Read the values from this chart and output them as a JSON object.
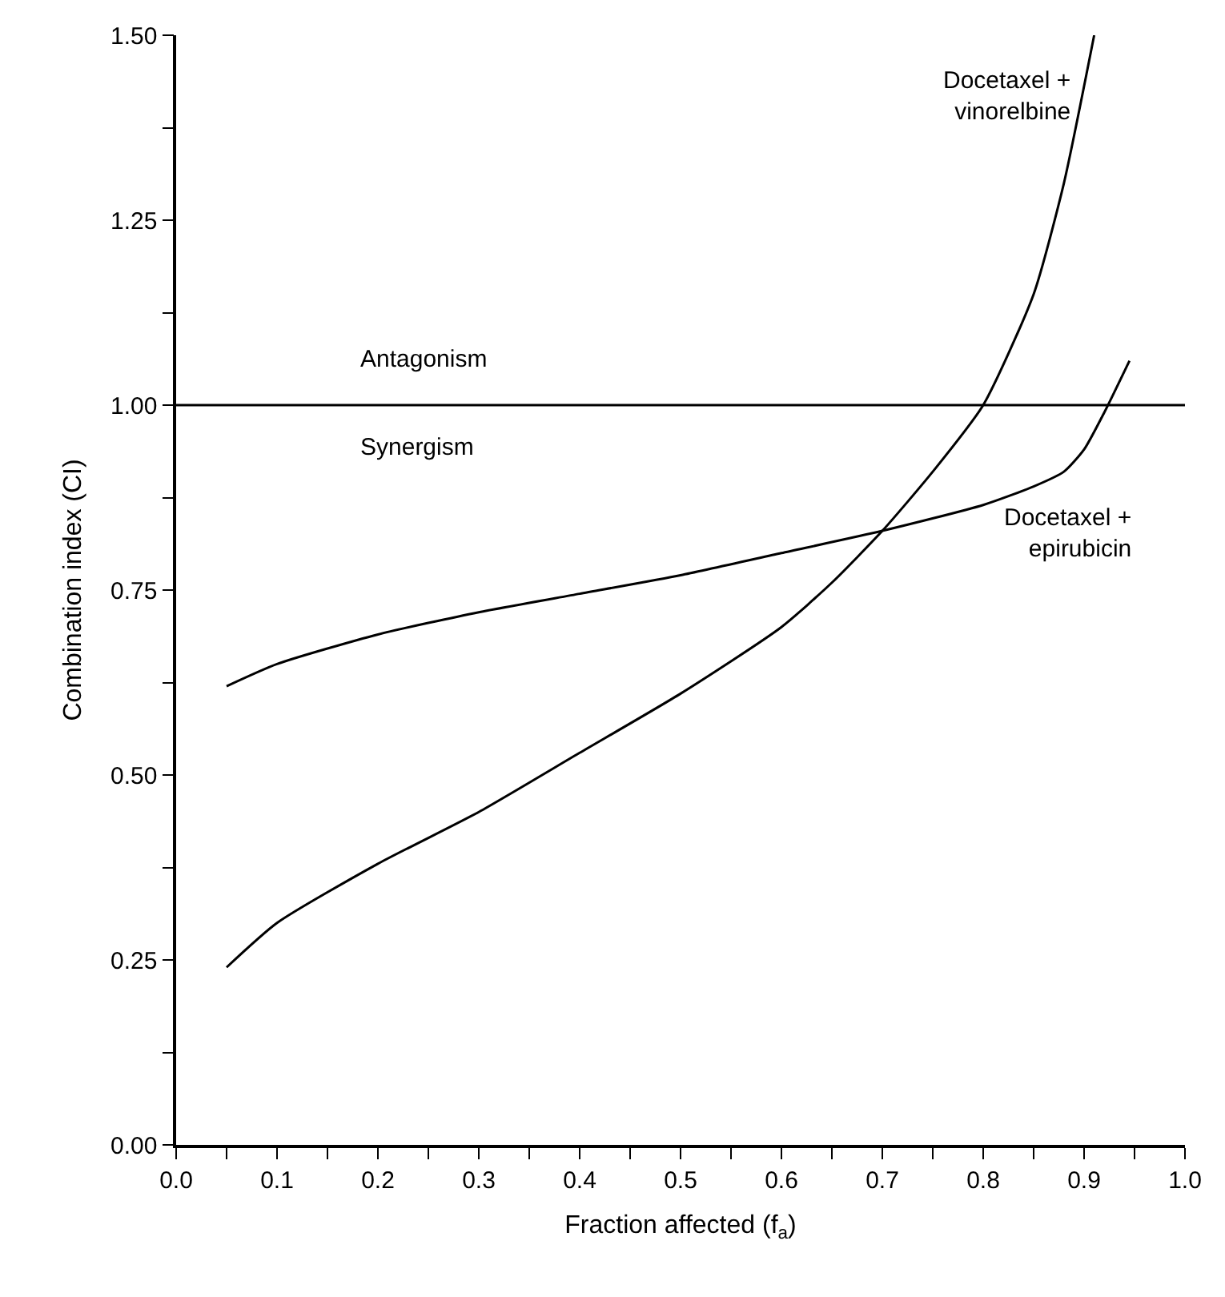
{
  "chart_data": {
    "type": "line",
    "xlabel": "Fraction affected (f$_{a}$)",
    "ylabel": "Combination index (CI)",
    "xlim": [
      0,
      1
    ],
    "ylim": [
      0,
      1.5
    ],
    "xticks": [
      {
        "value": 0,
        "label": "0.0"
      },
      {
        "value": 0.05,
        "label": null
      },
      {
        "value": 0.1,
        "label": "0.1"
      },
      {
        "value": 0.15,
        "label": null
      },
      {
        "value": 0.2,
        "label": "0.2"
      },
      {
        "value": 0.25,
        "label": null
      },
      {
        "value": 0.3,
        "label": "0.3"
      },
      {
        "value": 0.35,
        "label": null
      },
      {
        "value": 0.4,
        "label": "0.4"
      },
      {
        "value": 0.45,
        "label": null
      },
      {
        "value": 0.5,
        "label": "0.5"
      },
      {
        "value": 0.55,
        "label": null
      },
      {
        "value": 0.6,
        "label": "0.6"
      },
      {
        "value": 0.65,
        "label": null
      },
      {
        "value": 0.7,
        "label": "0.7"
      },
      {
        "value": 0.75,
        "label": null
      },
      {
        "value": 0.8,
        "label": "0.8"
      },
      {
        "value": 0.85,
        "label": null
      },
      {
        "value": 0.9,
        "label": "0.9"
      },
      {
        "value": 0.95,
        "label": null
      },
      {
        "value": 1,
        "label": "1.0"
      }
    ],
    "yticks": [
      {
        "value": 0,
        "label": "0.00"
      },
      {
        "value": 0.125,
        "label": null
      },
      {
        "value": 0.25,
        "label": "0.25"
      },
      {
        "value": 0.375,
        "label": null
      },
      {
        "value": 0.5,
        "label": "0.50"
      },
      {
        "value": 0.625,
        "label": null
      },
      {
        "value": 0.75,
        "label": "0.75"
      },
      {
        "value": 0.875,
        "label": null
      },
      {
        "value": 1,
        "label": "1.00"
      },
      {
        "value": 1.125,
        "label": null
      },
      {
        "value": 1.25,
        "label": "1.25"
      },
      {
        "value": 1.375,
        "label": null
      },
      {
        "value": 1.5,
        "label": "1.50"
      }
    ],
    "grid": false,
    "legend": false,
    "marker": "none",
    "line_style": "solid",
    "series": [
      {
        "name": "Docetaxel + vinorelbine",
        "color": "#000000",
        "x": [
          0.05,
          0.1,
          0.2,
          0.3,
          0.4,
          0.5,
          0.6,
          0.65,
          0.7,
          0.75,
          0.8,
          0.85,
          0.88,
          0.91
        ],
        "values": [
          0.24,
          0.3,
          0.38,
          0.45,
          0.53,
          0.61,
          0.7,
          0.76,
          0.83,
          0.91,
          1.0,
          1.15,
          1.3,
          1.5
        ]
      },
      {
        "name": "Docetaxel + epirubicin",
        "color": "#000000",
        "x": [
          0.05,
          0.1,
          0.2,
          0.3,
          0.4,
          0.5,
          0.6,
          0.7,
          0.8,
          0.85,
          0.88,
          0.9,
          0.92,
          0.945
        ],
        "values": [
          0.62,
          0.65,
          0.69,
          0.72,
          0.745,
          0.77,
          0.8,
          0.83,
          0.865,
          0.89,
          0.91,
          0.94,
          0.99,
          1.06
        ]
      }
    ],
    "ref_lines": [
      {
        "axis": "y",
        "value": 1,
        "color": "#000000"
      }
    ],
    "annotations": [
      "Antagonism",
      "Synergism"
    ]
  }
}
